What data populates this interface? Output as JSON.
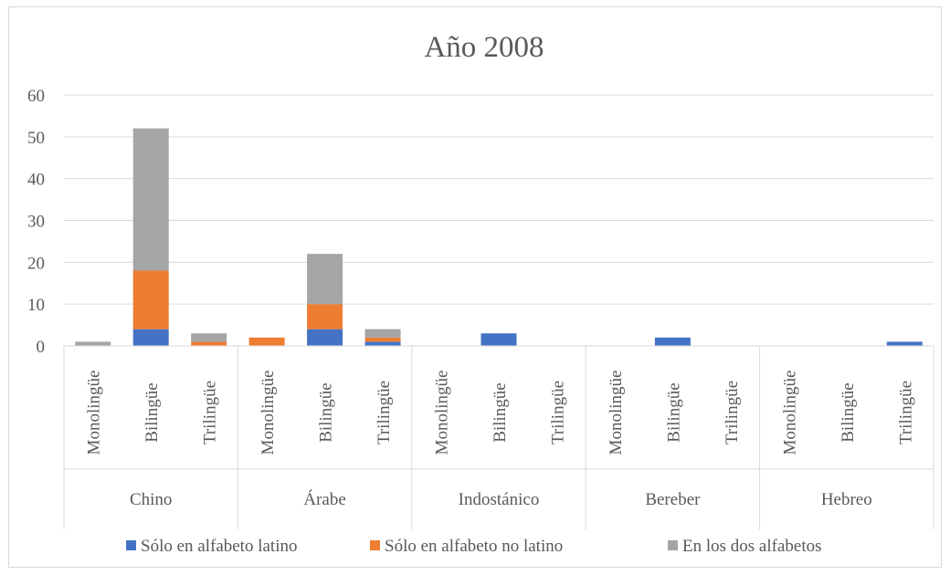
{
  "chart_data": {
    "type": "bar",
    "stacked": true,
    "title": "Año 2008",
    "xlabel": "",
    "ylabel": "",
    "ylim": [
      0,
      60
    ],
    "yticks": [
      0,
      10,
      20,
      30,
      40,
      50,
      60
    ],
    "grid": true,
    "legend_position": "bottom",
    "groups": [
      "Chino",
      "Árabe",
      "Indostánico",
      "Bereber",
      "Hebreo"
    ],
    "subcategories": [
      "Monolingüe",
      "Bilingüe",
      "Trilingüe"
    ],
    "series": [
      {
        "name": "Sólo en alfabeto latino",
        "color": "#4472c4",
        "values": [
          0,
          4,
          0,
          0,
          4,
          1,
          0,
          3,
          0,
          0,
          2,
          0,
          0,
          0,
          1
        ]
      },
      {
        "name": "Sólo en alfabeto no latino",
        "color": "#ed7d31",
        "values": [
          0,
          14,
          1,
          2,
          6,
          1,
          0,
          0,
          0,
          0,
          0,
          0,
          0,
          0,
          0
        ]
      },
      {
        "name": "En los dos alfabetos",
        "color": "#a5a5a5",
        "values": [
          1,
          34,
          2,
          0,
          12,
          2,
          0,
          0,
          0,
          0,
          0,
          0,
          0,
          0,
          0
        ]
      }
    ]
  }
}
